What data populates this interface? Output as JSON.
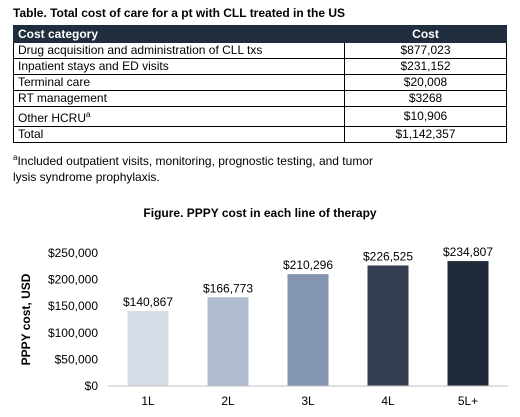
{
  "table": {
    "title": "Table. Total cost of care for a pt with CLL treated in the US",
    "headers": [
      "Cost category",
      "Cost"
    ],
    "rows": [
      {
        "category": "Drug acquisition and administration of CLL txs",
        "cost": "$877,023"
      },
      {
        "category": "Inpatient stays and ED visits",
        "cost": "$231,152"
      },
      {
        "category": "Terminal care",
        "cost": "$20,008"
      },
      {
        "category": "RT management",
        "cost": "$3268"
      },
      {
        "category": "Other HCRU",
        "sup": "a",
        "cost": "$10,906"
      },
      {
        "category": "Total",
        "cost": "$1,142,357"
      }
    ],
    "footnote_mark": "a",
    "footnote": "Included outpatient visits, monitoring, prognostic testing, and tumor lysis syndrome prophylaxis."
  },
  "chart_data": {
    "type": "bar",
    "title": "Figure. PPPY cost in each line of therapy",
    "xlabel": "",
    "ylabel": "PPPY cost, USD",
    "categories": [
      "1L",
      "2L",
      "3L",
      "4L",
      "5L+"
    ],
    "values": [
      140867,
      166773,
      210296,
      226525,
      234807
    ],
    "value_labels": [
      "$140,867",
      "$166,773",
      "$210,296",
      "$226,525",
      "$234,807"
    ],
    "bar_colors": [
      "#d6dce6",
      "#afbccf",
      "#8496b0",
      "#343e50",
      "#202a38"
    ],
    "ylim": [
      0,
      250000
    ],
    "yticks": [
      0,
      50000,
      100000,
      150000,
      200000,
      250000
    ],
    "ytick_labels": [
      "$0",
      "$50,000",
      "$100,000",
      "$150,000",
      "$200,000",
      "$250,000"
    ],
    "grid": false,
    "legend": "none"
  }
}
